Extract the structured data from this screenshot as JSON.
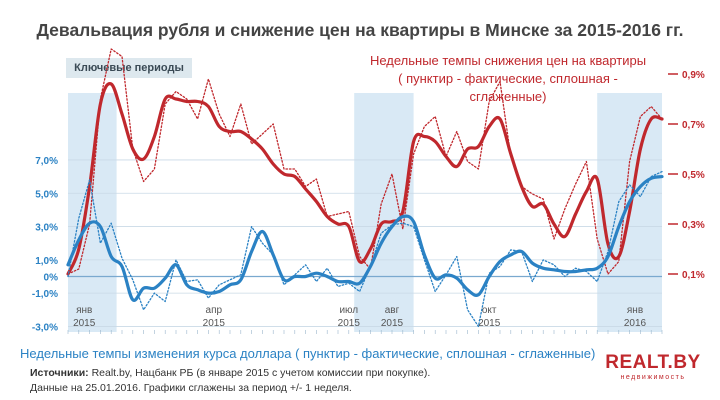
{
  "title": "Девальвация рубля и снижение цен на квартиры в Минске за 2015-2016 гг.",
  "key_periods_label": "Ключевые периоды",
  "red_caption": {
    "line1": "Недельные темпы снижения цен на квартиры",
    "line2": "( пунктир - фактические, сплошная - сглаженные)"
  },
  "blue_caption": "Недельные темпы изменения курса доллара ( пунктир - фактические, сплошная - сглаженные)",
  "sources": {
    "label": "Источники:",
    "line1": " Realt.by, Нацбанк РБ (в январе 2015 с учетом комиссии при покупке).",
    "line2": "Данные на 25.01.2016. Графики сглажены за период +/- 1 неделя."
  },
  "logo": {
    "main": "REALT.BY",
    "sub": "недвижимость"
  },
  "colors": {
    "red": "#c0282d",
    "blue": "#2b82c4",
    "highlight": "#d9e9f5"
  },
  "chart_data": {
    "type": "line",
    "x_unit": "week index (0 = early Jan 2015, 55 = late Jan 2016)",
    "x_range": [
      0,
      55
    ],
    "left_axis": {
      "label": "",
      "ticks": [
        "7,0%",
        "5,0%",
        "3,0%",
        "1,0%",
        "0%",
        "-1,0%",
        "-3,0%"
      ],
      "tick_values": [
        7,
        5,
        3,
        1,
        0,
        -1,
        -3
      ],
      "range": [
        -3,
        10
      ]
    },
    "right_axis": {
      "label": "",
      "ticks": [
        "0,9%",
        "0,7%",
        "0,5%",
        "0,3%",
        "0,1%"
      ],
      "tick_values": [
        0.9,
        0.7,
        0.5,
        0.3,
        0.1
      ],
      "range": [
        -0.1,
        1.0
      ]
    },
    "x_tick_labels": [
      {
        "lines": [
          "янв",
          "2015"
        ],
        "x": 1.5
      },
      {
        "lines": [
          "апр",
          "2015"
        ],
        "x": 13.5
      },
      {
        "lines": [
          "июл",
          "2015"
        ],
        "x": 26
      },
      {
        "lines": [
          "авг",
          "2015"
        ],
        "x": 30
      },
      {
        "lines": [
          "окт",
          "2015"
        ],
        "x": 39
      },
      {
        "lines": [
          "янв",
          "2016"
        ],
        "x": 52.5
      }
    ],
    "highlight_periods": [
      [
        0,
        4.5
      ],
      [
        26.5,
        32
      ],
      [
        49,
        55
      ]
    ],
    "series": [
      {
        "axis": "right",
        "style": "dotted",
        "color": "#c0282d",
        "x": [
          0,
          1,
          2,
          3,
          4,
          5,
          6,
          7,
          8,
          9,
          10,
          11,
          12,
          13,
          14,
          15,
          16,
          17,
          18,
          19,
          20,
          21,
          22,
          23,
          24,
          25,
          26,
          27,
          28,
          29,
          30,
          31,
          32,
          33,
          34,
          35,
          36,
          37,
          38,
          39,
          40,
          41,
          42,
          43,
          44,
          45,
          46,
          47,
          48,
          49,
          50,
          51,
          52,
          53,
          54,
          55
        ],
        "values": [
          0.1,
          0.12,
          0.3,
          0.8,
          1.0,
          0.97,
          0.6,
          0.47,
          0.52,
          0.78,
          0.83,
          0.8,
          0.72,
          0.88,
          0.74,
          0.65,
          0.78,
          0.62,
          0.66,
          0.7,
          0.52,
          0.52,
          0.45,
          0.48,
          0.33,
          0.34,
          0.35,
          0.17,
          0.12,
          0.38,
          0.5,
          0.28,
          0.58,
          0.69,
          0.73,
          0.57,
          0.67,
          0.55,
          0.52,
          0.79,
          0.87,
          0.57,
          0.45,
          0.42,
          0.4,
          0.24,
          0.36,
          0.46,
          0.55,
          0.24,
          0.1,
          0.15,
          0.55,
          0.73,
          0.77,
          0.72
        ]
      },
      {
        "axis": "right",
        "style": "solid",
        "color": "#c0282d",
        "x": [
          0,
          1,
          2,
          3,
          4,
          5,
          6,
          7,
          8,
          9,
          10,
          11,
          12,
          13,
          14,
          15,
          16,
          17,
          18,
          19,
          20,
          21,
          22,
          23,
          24,
          25,
          26,
          27,
          28,
          29,
          30,
          31,
          32,
          33,
          34,
          35,
          36,
          37,
          38,
          39,
          40,
          41,
          42,
          43,
          44,
          45,
          46,
          47,
          48,
          49,
          50,
          51,
          52,
          53,
          54,
          55
        ],
        "values": [
          0.1,
          0.2,
          0.45,
          0.78,
          0.86,
          0.74,
          0.6,
          0.56,
          0.65,
          0.8,
          0.8,
          0.79,
          0.79,
          0.77,
          0.69,
          0.67,
          0.67,
          0.64,
          0.6,
          0.54,
          0.5,
          0.49,
          0.44,
          0.39,
          0.33,
          0.3,
          0.29,
          0.15,
          0.2,
          0.3,
          0.31,
          0.35,
          0.63,
          0.65,
          0.63,
          0.57,
          0.53,
          0.6,
          0.61,
          0.69,
          0.72,
          0.58,
          0.45,
          0.37,
          0.38,
          0.3,
          0.25,
          0.34,
          0.43,
          0.48,
          0.22,
          0.17,
          0.35,
          0.6,
          0.72,
          0.72
        ]
      },
      {
        "axis": "left",
        "style": "dotted",
        "color": "#2b82c4",
        "x": [
          0,
          1,
          2,
          3,
          4,
          5,
          6,
          7,
          8,
          9,
          10,
          11,
          12,
          13,
          14,
          15,
          16,
          17,
          18,
          19,
          20,
          21,
          22,
          23,
          24,
          25,
          26,
          27,
          28,
          29,
          30,
          31,
          32,
          33,
          34,
          35,
          36,
          37,
          38,
          39,
          40,
          41,
          42,
          43,
          44,
          45,
          46,
          47,
          48,
          49,
          50,
          51,
          52,
          53,
          54,
          55
        ],
        "values": [
          0.0,
          3.5,
          5.8,
          2.0,
          3.2,
          1.1,
          -0.2,
          -2.0,
          -1.0,
          -1.5,
          1.0,
          -0.3,
          -0.2,
          -1.3,
          -0.5,
          -0.2,
          0.1,
          3.0,
          2.0,
          1.3,
          -0.5,
          0.1,
          0.7,
          -0.3,
          0.5,
          -0.6,
          -0.4,
          -0.9,
          0.6,
          2.6,
          3.1,
          3.2,
          3.0,
          1.0,
          -0.9,
          0.1,
          1.2,
          -2.0,
          -3.0,
          0.2,
          0.6,
          1.6,
          1.5,
          -0.3,
          1.0,
          0.7,
          0.0,
          0.5,
          0.3,
          -0.3,
          1.5,
          4.5,
          5.5,
          4.8,
          6.0,
          6.3
        ]
      },
      {
        "axis": "left",
        "style": "solid",
        "color": "#2b82c4",
        "x": [
          0,
          1,
          2,
          3,
          4,
          5,
          6,
          7,
          8,
          9,
          10,
          11,
          12,
          13,
          14,
          15,
          16,
          17,
          18,
          19,
          20,
          21,
          22,
          23,
          24,
          25,
          26,
          27,
          28,
          29,
          30,
          31,
          32,
          33,
          34,
          35,
          36,
          37,
          38,
          39,
          40,
          41,
          42,
          43,
          44,
          45,
          46,
          47,
          48,
          49,
          50,
          51,
          52,
          53,
          54,
          55
        ],
        "values": [
          0.7,
          2.2,
          3.2,
          3.0,
          1.2,
          0.6,
          -1.4,
          -0.7,
          -0.7,
          -0.1,
          0.7,
          -0.5,
          -0.8,
          -1.0,
          -0.9,
          -0.5,
          -0.2,
          1.5,
          2.7,
          1.3,
          -0.2,
          0.0,
          0.0,
          0.2,
          0.0,
          -0.3,
          -0.3,
          -0.4,
          0.6,
          2.0,
          3.0,
          3.6,
          3.3,
          1.3,
          -0.1,
          0.1,
          -0.1,
          -0.8,
          -1.1,
          0.0,
          0.9,
          1.3,
          1.5,
          0.8,
          0.5,
          0.4,
          0.3,
          0.3,
          0.4,
          0.5,
          1.2,
          3.0,
          4.5,
          5.4,
          5.9,
          6.0
        ]
      }
    ]
  }
}
